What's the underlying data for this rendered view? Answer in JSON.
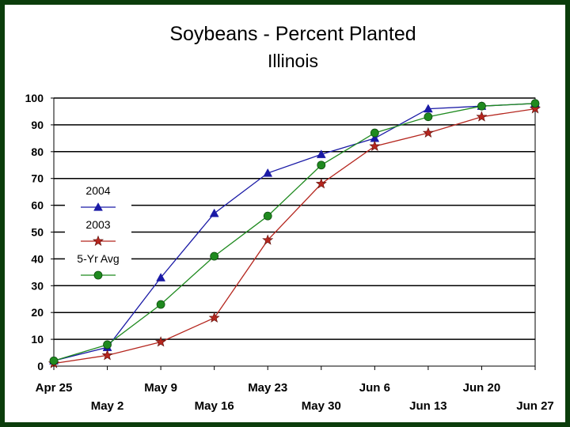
{
  "chart_data": {
    "type": "line",
    "title": "Soybeans - Percent Planted",
    "subtitle": "Illinois",
    "categories": [
      "Apr 25",
      "May 2",
      "May 9",
      "May 16",
      "May 23",
      "May 30",
      "Jun 6",
      "Jun 13",
      "Jun 20",
      "Jun 27"
    ],
    "ylim": [
      0,
      100
    ],
    "yticks": [
      0,
      10,
      20,
      30,
      40,
      50,
      60,
      70,
      80,
      90,
      100
    ],
    "grid": true,
    "legend_position": "left",
    "series": [
      {
        "name": "2004",
        "color": "#1a1aa6",
        "marker": "triangle",
        "values": [
          2,
          7,
          33,
          57,
          72,
          79,
          85,
          96,
          97,
          98
        ]
      },
      {
        "name": "2003",
        "color": "#b5261e",
        "marker": "star",
        "values": [
          1,
          4,
          9,
          18,
          47,
          68,
          82,
          87,
          93,
          96
        ]
      },
      {
        "name": "5-Yr Avg",
        "color": "#1f8a1f",
        "marker": "circle",
        "values": [
          2,
          8,
          23,
          41,
          56,
          75,
          87,
          93,
          97,
          98
        ]
      }
    ]
  },
  "colors": {
    "frame": "#0b3d0b",
    "marker_fill_2004": "#1a1aa6",
    "marker_fill_2003": "#b5261e",
    "marker_fill_avg": "#1f8a1f"
  }
}
